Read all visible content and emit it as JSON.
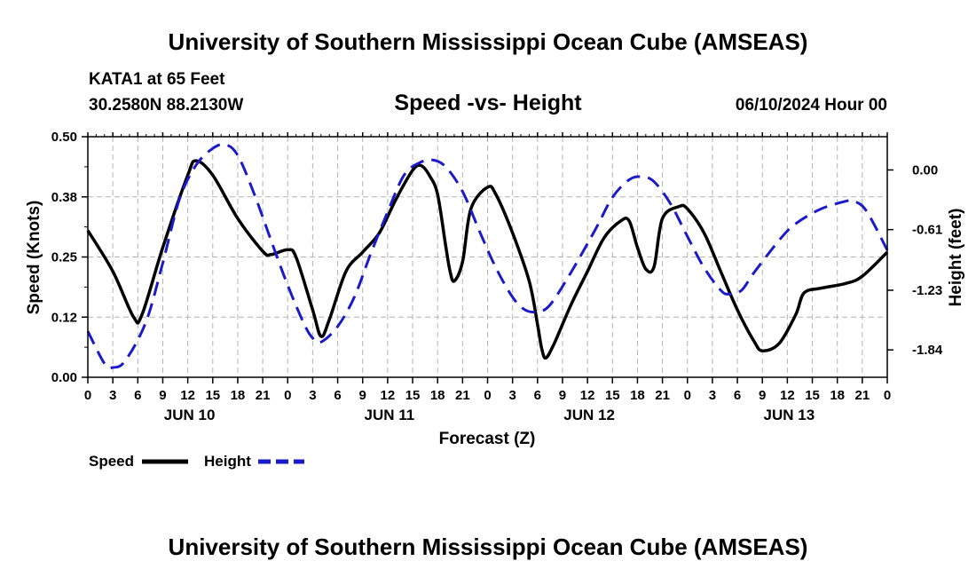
{
  "header": {
    "title": "University of Southern Mississippi Ocean Cube (AMSEAS)",
    "footer_title": "University of Southern Mississippi Ocean Cube (AMSEAS)",
    "station": "KATA1 at 65 Feet",
    "coords": "30.2580N  88.2130W",
    "date": "06/10/2024 Hour 00"
  },
  "legend": {
    "speed_label": "Speed",
    "height_label": "Height"
  },
  "colors": {
    "speed": "#000000",
    "height": "#1a1acc",
    "grid": "#b4b4b4"
  },
  "chart_data": {
    "type": "line",
    "title": "Speed -vs- Height",
    "xlabel": "Forecast (Z)",
    "ylabel": "Speed (Knots)",
    "ylabel_right": "Height (feet)",
    "x_range_hours": [
      0,
      96
    ],
    "ylim": [
      0,
      0.5
    ],
    "ylim_right": [
      -2.12,
      0.34
    ],
    "yticks": [
      "0.00",
      "0.12",
      "0.25",
      "0.38",
      "0.50"
    ],
    "yticks_values": [
      0,
      0.125,
      0.25,
      0.375,
      0.5
    ],
    "yticks_right": [
      "0.00",
      "-0.61",
      "-1.23",
      "-1.84"
    ],
    "yticks_right_values": [
      0.0,
      -0.61,
      -1.23,
      -1.84
    ],
    "xtick_hours": [
      0,
      3,
      6,
      9,
      12,
      15,
      18,
      21,
      24,
      27,
      30,
      33,
      36,
      39,
      42,
      45,
      48,
      51,
      54,
      57,
      60,
      63,
      66,
      69,
      72,
      75,
      78,
      81,
      84,
      87,
      90,
      93,
      96
    ],
    "xtick_labels": [
      "0",
      "3",
      "6",
      "9",
      "12",
      "15",
      "18",
      "21",
      "0",
      "3",
      "6",
      "9",
      "12",
      "15",
      "18",
      "21",
      "0",
      "3",
      "6",
      "9",
      "12",
      "15",
      "18",
      "21",
      "0",
      "3",
      "6",
      "9",
      "12",
      "15",
      "18",
      "21",
      "0"
    ],
    "day_labels": [
      {
        "label": "JUN 10",
        "hour": 12
      },
      {
        "label": "JUN 11",
        "hour": 36
      },
      {
        "label": "JUN 12",
        "hour": 60
      },
      {
        "label": "JUN 13",
        "hour": 84
      }
    ],
    "series": [
      {
        "name": "Speed",
        "axis": "left",
        "points": [
          [
            0,
            0.305
          ],
          [
            3,
            0.22
          ],
          [
            5.5,
            0.125
          ],
          [
            6.5,
            0.13
          ],
          [
            9,
            0.27
          ],
          [
            12,
            0.42
          ],
          [
            13,
            0.45
          ],
          [
            15,
            0.42
          ],
          [
            18,
            0.33
          ],
          [
            21,
            0.262
          ],
          [
            22,
            0.255
          ],
          [
            24,
            0.265
          ],
          [
            25,
            0.25
          ],
          [
            27,
            0.14
          ],
          [
            28,
            0.085
          ],
          [
            29,
            0.12
          ],
          [
            31,
            0.22
          ],
          [
            33,
            0.26
          ],
          [
            35,
            0.3
          ],
          [
            37,
            0.37
          ],
          [
            39,
            0.43
          ],
          [
            40,
            0.44
          ],
          [
            41,
            0.42
          ],
          [
            42,
            0.38
          ],
          [
            43,
            0.27
          ],
          [
            43.5,
            0.22
          ],
          [
            44,
            0.2
          ],
          [
            45,
            0.24
          ],
          [
            46,
            0.35
          ],
          [
            48,
            0.395
          ],
          [
            49,
            0.38
          ],
          [
            51,
            0.3
          ],
          [
            53,
            0.2
          ],
          [
            54,
            0.11
          ],
          [
            54.5,
            0.06
          ],
          [
            55,
            0.04
          ],
          [
            56,
            0.07
          ],
          [
            58,
            0.15
          ],
          [
            60,
            0.22
          ],
          [
            62,
            0.29
          ],
          [
            64,
            0.325
          ],
          [
            65,
            0.325
          ],
          [
            66,
            0.27
          ],
          [
            67,
            0.225
          ],
          [
            68,
            0.23
          ],
          [
            69,
            0.33
          ],
          [
            71,
            0.355
          ],
          [
            72,
            0.35
          ],
          [
            74,
            0.3
          ],
          [
            76,
            0.22
          ],
          [
            78,
            0.14
          ],
          [
            80,
            0.075
          ],
          [
            81,
            0.055
          ],
          [
            83,
            0.07
          ],
          [
            85,
            0.13
          ],
          [
            86,
            0.175
          ],
          [
            88,
            0.185
          ],
          [
            91,
            0.195
          ],
          [
            93,
            0.21
          ],
          [
            96,
            0.26
          ]
        ]
      },
      {
        "name": "Height",
        "axis": "right",
        "points": [
          [
            0,
            -1.65
          ],
          [
            2,
            -1.98
          ],
          [
            3,
            -2.02
          ],
          [
            4.5,
            -1.95
          ],
          [
            7,
            -1.55
          ],
          [
            9,
            -0.95
          ],
          [
            11,
            -0.3
          ],
          [
            13,
            0.05
          ],
          [
            15,
            0.22
          ],
          [
            16.5,
            0.26
          ],
          [
            18,
            0.15
          ],
          [
            20,
            -0.25
          ],
          [
            22,
            -0.72
          ],
          [
            24,
            -1.18
          ],
          [
            26,
            -1.58
          ],
          [
            27,
            -1.72
          ],
          [
            28,
            -1.76
          ],
          [
            30,
            -1.6
          ],
          [
            32,
            -1.3
          ],
          [
            34,
            -0.85
          ],
          [
            36,
            -0.43
          ],
          [
            38,
            -0.05
          ],
          [
            40,
            0.08
          ],
          [
            41.5,
            0.1
          ],
          [
            43,
            0.03
          ],
          [
            45,
            -0.22
          ],
          [
            47,
            -0.62
          ],
          [
            49,
            -1.0
          ],
          [
            51,
            -1.3
          ],
          [
            52.5,
            -1.43
          ],
          [
            54,
            -1.45
          ],
          [
            55.5,
            -1.38
          ],
          [
            58,
            -1.05
          ],
          [
            61,
            -0.6
          ],
          [
            63,
            -0.28
          ],
          [
            65,
            -0.1
          ],
          [
            66.5,
            -0.07
          ],
          [
            68,
            -0.12
          ],
          [
            70,
            -0.35
          ],
          [
            72,
            -0.68
          ],
          [
            74,
            -1.0
          ],
          [
            76,
            -1.23
          ],
          [
            77,
            -1.27
          ],
          [
            78.5,
            -1.23
          ],
          [
            80,
            -1.05
          ],
          [
            83,
            -0.72
          ],
          [
            85,
            -0.55
          ],
          [
            88,
            -0.4
          ],
          [
            91,
            -0.32
          ],
          [
            92,
            -0.32
          ],
          [
            93.5,
            -0.42
          ],
          [
            96,
            -0.82
          ]
        ]
      }
    ]
  }
}
